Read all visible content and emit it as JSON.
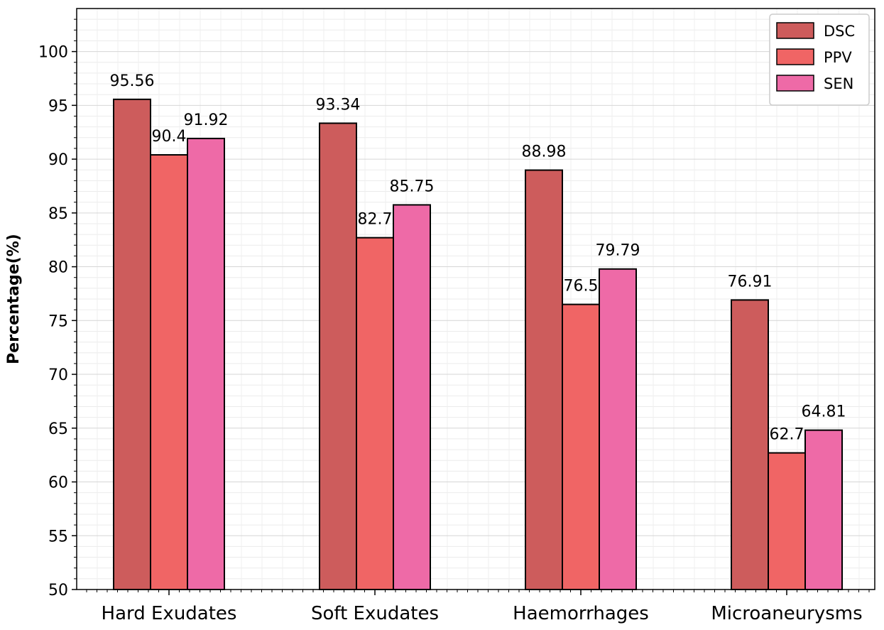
{
  "chart_data": {
    "type": "bar",
    "title": "",
    "xlabel": "",
    "ylabel": "Percentage(%)",
    "categories": [
      "Hard Exudates",
      "Soft Exudates",
      "Haemorrhages",
      "Microaneurysms"
    ],
    "series": [
      {
        "name": "DSC",
        "values": [
          95.56,
          93.34,
          88.98,
          76.91
        ],
        "labels": [
          "95.56",
          "93.34",
          "88.98",
          "76.91"
        ],
        "color": "#cd5c5c"
      },
      {
        "name": "PPV",
        "values": [
          90.4,
          82.7,
          76.5,
          62.7
        ],
        "labels": [
          "90.4",
          "82.7",
          "76.5",
          "62.7"
        ],
        "color": "#f06565"
      },
      {
        "name": "SEN",
        "values": [
          91.92,
          85.75,
          79.79,
          64.81
        ],
        "labels": [
          "91.92",
          "85.75",
          "79.79",
          "64.81"
        ],
        "color": "#ee6aa7"
      }
    ],
    "ylim": [
      50,
      104
    ],
    "yticks": [
      "50",
      "55",
      "60",
      "65",
      "70",
      "75",
      "80",
      "85",
      "90",
      "95",
      "100"
    ],
    "grid": true,
    "legend_position": "top-right"
  }
}
